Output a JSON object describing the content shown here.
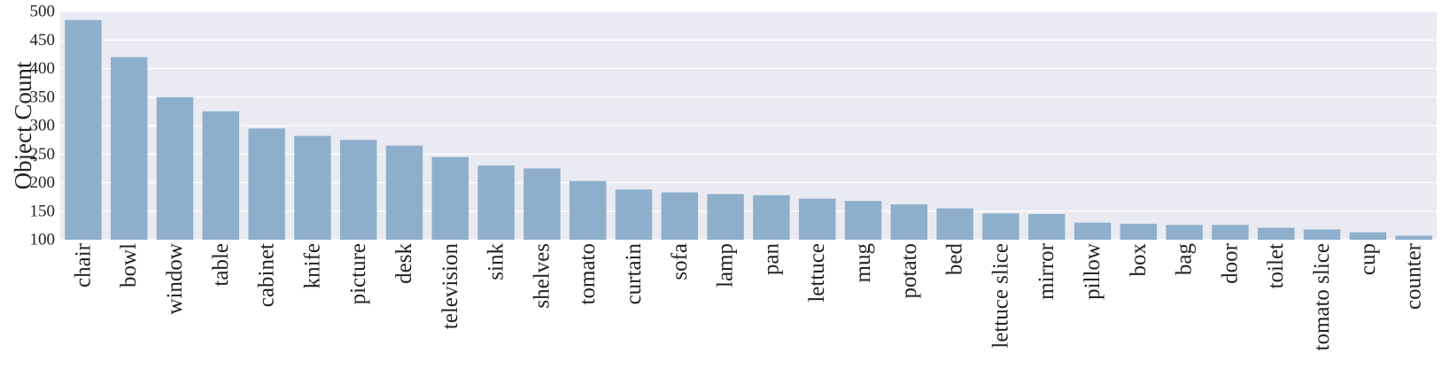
{
  "chart_data": {
    "type": "bar",
    "title": "",
    "xlabel": "",
    "ylabel": "Object Count",
    "ylim": [
      100,
      500
    ],
    "yticks": [
      100,
      150,
      200,
      250,
      300,
      350,
      400,
      450,
      500
    ],
    "grid": true,
    "legend": "none",
    "colors": {
      "bar": "#8eafcc",
      "plot_bg": "#eaeaf2",
      "grid": "#ffffff"
    },
    "categories": [
      "chair",
      "bowl",
      "window",
      "table",
      "cabinet",
      "knife",
      "picture",
      "desk",
      "television",
      "sink",
      "shelves",
      "tomato",
      "curtain",
      "sofa",
      "lamp",
      "pan",
      "lettuce",
      "mug",
      "potato",
      "bed",
      "lettuce slice",
      "mirror",
      "pillow",
      "box",
      "bag",
      "door",
      "toilet",
      "tomato slice",
      "cup",
      "counter"
    ],
    "values": [
      485,
      420,
      350,
      325,
      295,
      282,
      275,
      265,
      245,
      230,
      225,
      203,
      188,
      183,
      180,
      178,
      172,
      168,
      162,
      155,
      146,
      145,
      130,
      128,
      126,
      126,
      121,
      118,
      113,
      107
    ]
  }
}
